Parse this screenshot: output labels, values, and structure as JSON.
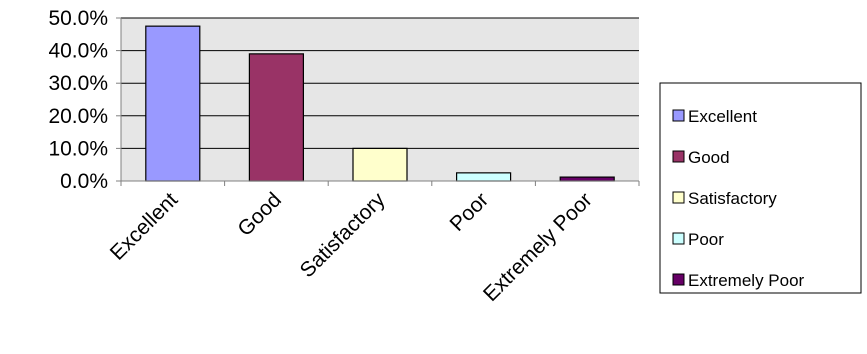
{
  "chart_data": {
    "type": "bar",
    "categories": [
      "Excellent",
      "Good",
      "Satisfactory",
      "Poor",
      "Extremely Poor"
    ],
    "values": [
      47.5,
      39.0,
      10.0,
      2.5,
      1.2
    ],
    "colors": [
      "#9999ff",
      "#993366",
      "#ffffcc",
      "#ccffff",
      "#660066"
    ],
    "ylim": [
      0,
      50
    ],
    "yticks": [
      0,
      10,
      20,
      30,
      40,
      50
    ],
    "ytick_labels": [
      "0.0%",
      "10.0%",
      "20.0%",
      "30.0%",
      "40.0%",
      "50.0%"
    ],
    "grid": true,
    "plot_background": "#e6e6e6",
    "legend_position": "right",
    "legend": [
      "Excellent",
      "Good",
      "Satisfactory",
      "Poor",
      "Extremely Poor"
    ],
    "title": "",
    "xlabel": "",
    "ylabel": ""
  }
}
